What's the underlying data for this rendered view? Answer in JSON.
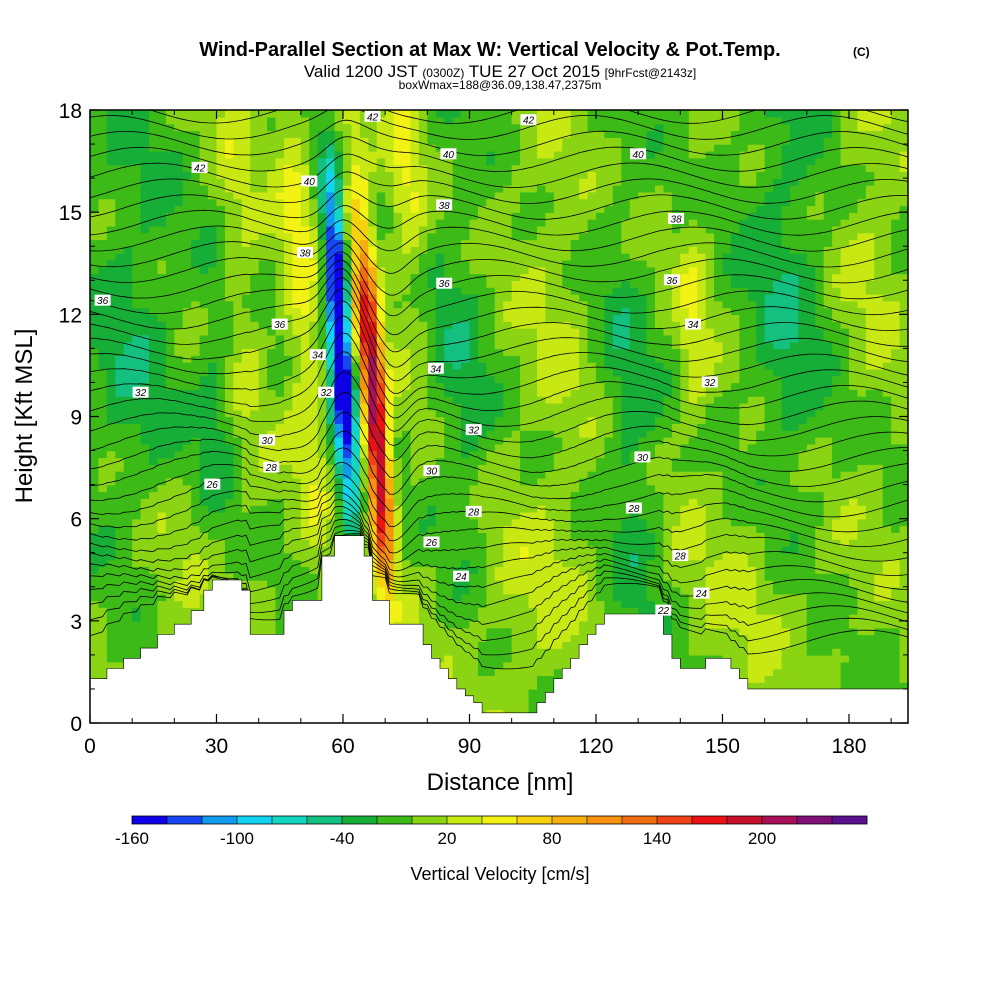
{
  "chart_data": {
    "type": "heatmap",
    "title": "Wind-Parallel Section at Max W: Vertical Velocity & Pot.Temp.",
    "title_mark": "(C)",
    "subtitle": {
      "valid": "Valid 1200 JST",
      "utc": "(0300Z)",
      "date": "TUE 27 Oct 2015",
      "forecast": "[9hrFcst@2143z]"
    },
    "subtitle2": "boxWmax=188@36.09,138.47,2375m",
    "xlabel": "Distance [nm]",
    "ylabel": "Height [Kft MSL]",
    "xlim": [
      0,
      194
    ],
    "ylim": [
      0,
      18
    ],
    "x_ticks": [
      0,
      30,
      60,
      90,
      120,
      150,
      180
    ],
    "y_ticks": [
      0,
      3,
      6,
      9,
      12,
      15,
      18
    ],
    "colorbar": {
      "label": "Vertical Velocity [cm/s]",
      "range": [
        -160,
        260
      ],
      "ticks": [
        -160,
        -100,
        -40,
        20,
        80,
        140,
        200
      ],
      "colors": [
        "#0d00e8",
        "#1746f5",
        "#129aee",
        "#12d4f2",
        "#12d6c0",
        "#14c080",
        "#16ae36",
        "#3cba17",
        "#8ad414",
        "#c8e814",
        "#f2f214",
        "#f6d20e",
        "#f6b00e",
        "#f6920e",
        "#f26c12",
        "#f04416",
        "#ea1212",
        "#c8102c",
        "#a81058",
        "#800e78",
        "#5a0e90"
      ]
    },
    "background_level_cms": 0,
    "terrain_kft": [
      [
        0,
        1.3
      ],
      [
        4,
        1.6
      ],
      [
        8,
        1.9
      ],
      [
        12,
        2.2
      ],
      [
        16,
        2.6
      ],
      [
        20,
        2.9
      ],
      [
        24,
        3.3
      ],
      [
        27,
        3.9
      ],
      [
        29,
        4.2
      ],
      [
        34,
        4.2
      ],
      [
        36,
        3.9
      ],
      [
        38,
        2.6
      ],
      [
        44,
        2.6
      ],
      [
        46,
        3.3
      ],
      [
        48,
        3.6
      ],
      [
        54,
        3.6
      ],
      [
        55,
        4.9
      ],
      [
        58,
        5.5
      ],
      [
        64,
        5.5
      ],
      [
        65,
        4.9
      ],
      [
        67,
        3.6
      ],
      [
        71,
        2.9
      ],
      [
        77,
        2.9
      ],
      [
        79,
        2.3
      ],
      [
        81,
        1.9
      ],
      [
        83,
        1.6
      ],
      [
        85,
        1.3
      ],
      [
        87,
        1.0
      ],
      [
        89,
        0.8
      ],
      [
        91,
        0.6
      ],
      [
        93,
        0.3
      ],
      [
        105,
        0.3
      ],
      [
        106,
        0.6
      ],
      [
        108,
        0.9
      ],
      [
        110,
        1.3
      ],
      [
        112,
        1.6
      ],
      [
        114,
        1.9
      ],
      [
        116,
        2.3
      ],
      [
        118,
        2.6
      ],
      [
        120,
        2.9
      ],
      [
        122,
        3.2
      ],
      [
        134,
        3.2
      ],
      [
        136,
        2.6
      ],
      [
        138,
        1.9
      ],
      [
        140,
        1.6
      ],
      [
        144,
        1.6
      ],
      [
        146,
        1.9
      ],
      [
        150,
        1.9
      ],
      [
        152,
        1.6
      ],
      [
        154,
        1.3
      ],
      [
        156,
        1.0
      ],
      [
        194,
        1.0
      ]
    ],
    "w_features": [
      {
        "x": 60,
        "y": 10.2,
        "sx": 2.0,
        "sy": 3.2,
        "tilt": -0.45,
        "w": -160
      },
      {
        "x": 58,
        "y": 13.5,
        "sx": 1.6,
        "sy": 1.8,
        "tilt": -0.45,
        "w": -100
      },
      {
        "x": 68,
        "y": 8.6,
        "sx": 1.6,
        "sy": 2.8,
        "tilt": -0.55,
        "w": 160
      },
      {
        "x": 65,
        "y": 12.4,
        "sx": 2.6,
        "sy": 3.2,
        "tilt": -0.55,
        "w": 95
      },
      {
        "x": 69,
        "y": 6.2,
        "sx": 2.4,
        "sy": 1.6,
        "tilt": -0.45,
        "w": 60
      },
      {
        "x": 50,
        "y": 12.5,
        "sx": 3.0,
        "sy": 5.5,
        "tilt": -0.5,
        "w": 45
      },
      {
        "x": 35,
        "y": 14.0,
        "sx": 3.5,
        "sy": 5.0,
        "tilt": -0.4,
        "w": 25
      },
      {
        "x": 30,
        "y": 9.5,
        "sx": 3.5,
        "sy": 3.0,
        "tilt": 0,
        "w": -30
      },
      {
        "x": 143,
        "y": 11.5,
        "sx": 2.5,
        "sy": 2.5,
        "tilt": 0,
        "w": 35
      },
      {
        "x": 88,
        "y": 9.0,
        "sx": 5.0,
        "sy": 5.0,
        "tilt": -0.3,
        "w": -30
      },
      {
        "x": 110,
        "y": 13.0,
        "sx": 7.0,
        "sy": 5.0,
        "tilt": -0.5,
        "w": 18
      },
      {
        "x": 128,
        "y": 8.0,
        "sx": 5.0,
        "sy": 5.0,
        "tilt": -0.4,
        "w": -32
      },
      {
        "x": 165,
        "y": 12.0,
        "sx": 7.0,
        "sy": 6.0,
        "tilt": -0.2,
        "w": -35
      },
      {
        "x": 185,
        "y": 15.0,
        "sx": 6.0,
        "sy": 4.0,
        "tilt": 0,
        "w": 20
      },
      {
        "x": 10,
        "y": 10.0,
        "sx": 8.0,
        "sy": 6.0,
        "tilt": 0,
        "w": -32
      },
      {
        "x": 15,
        "y": 4.5,
        "sx": 10.0,
        "sy": 2.5,
        "tilt": 0,
        "w": 22
      },
      {
        "x": 100,
        "y": 3.5,
        "sx": 14.0,
        "sy": 2.5,
        "tilt": 0,
        "w": 22
      },
      {
        "x": 160,
        "y": 4.0,
        "sx": 14.0,
        "sy": 2.5,
        "tilt": 0,
        "w": 22
      },
      {
        "x": 75,
        "y": 16.0,
        "sx": 3.0,
        "sy": 3.0,
        "tilt": -0.3,
        "w": 40
      }
    ],
    "theta_labels": [
      {
        "x": 67,
        "y": 17.8,
        "label": "42"
      },
      {
        "x": 104,
        "y": 17.7,
        "label": "42"
      },
      {
        "x": 26,
        "y": 16.3,
        "label": "42"
      },
      {
        "x": 85,
        "y": 16.7,
        "label": "40"
      },
      {
        "x": 130,
        "y": 16.7,
        "label": "40"
      },
      {
        "x": 52,
        "y": 15.9,
        "label": "40"
      },
      {
        "x": 84,
        "y": 15.2,
        "label": "38"
      },
      {
        "x": 139,
        "y": 14.8,
        "label": "38"
      },
      {
        "x": 51,
        "y": 13.8,
        "label": "38"
      },
      {
        "x": 84,
        "y": 12.9,
        "label": "36"
      },
      {
        "x": 138,
        "y": 13.0,
        "label": "36"
      },
      {
        "x": 3,
        "y": 12.4,
        "label": "36"
      },
      {
        "x": 45,
        "y": 11.7,
        "label": "36"
      },
      {
        "x": 143,
        "y": 11.7,
        "label": "34"
      },
      {
        "x": 54,
        "y": 10.8,
        "label": "34"
      },
      {
        "x": 82,
        "y": 10.4,
        "label": "34"
      },
      {
        "x": 12,
        "y": 9.7,
        "label": "32"
      },
      {
        "x": 56,
        "y": 9.7,
        "label": "32"
      },
      {
        "x": 91,
        "y": 8.6,
        "label": "32"
      },
      {
        "x": 147,
        "y": 10.0,
        "label": "32"
      },
      {
        "x": 42,
        "y": 8.3,
        "label": "30"
      },
      {
        "x": 81,
        "y": 7.4,
        "label": "30"
      },
      {
        "x": 131,
        "y": 7.8,
        "label": "30"
      },
      {
        "x": 43,
        "y": 7.5,
        "label": "28"
      },
      {
        "x": 91,
        "y": 6.2,
        "label": "28"
      },
      {
        "x": 129,
        "y": 6.3,
        "label": "28"
      },
      {
        "x": 140,
        "y": 4.9,
        "label": "28"
      },
      {
        "x": 29,
        "y": 7.0,
        "label": "26"
      },
      {
        "x": 81,
        "y": 5.3,
        "label": "26"
      },
      {
        "x": 88,
        "y": 4.3,
        "label": "24"
      },
      {
        "x": 145,
        "y": 3.8,
        "label": "24"
      },
      {
        "x": 136,
        "y": 3.3,
        "label": "22"
      }
    ]
  }
}
